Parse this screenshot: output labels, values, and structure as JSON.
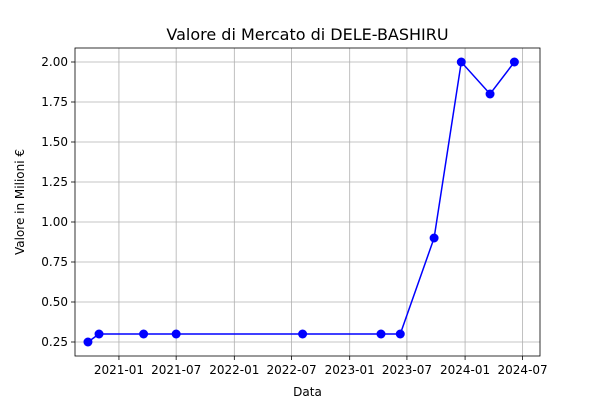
{
  "chart_data": {
    "type": "line",
    "title": "Valore di Mercato di DELE-BASHIRU",
    "xlabel": "Data",
    "ylabel": "Valore in Milioni €",
    "x_tick_labels": [
      "2021-01",
      "2021-07",
      "2022-01",
      "2022-07",
      "2023-01",
      "2023-07",
      "2024-01",
      "2024-07"
    ],
    "x_ticks": [
      "2021-01-01",
      "2021-07-01",
      "2022-01-01",
      "2022-07-01",
      "2023-01-01",
      "2023-07-01",
      "2024-01-01",
      "2024-07-01"
    ],
    "y_tick_labels": [
      "0.25",
      "0.50",
      "0.75",
      "1.00",
      "1.25",
      "1.50",
      "1.75",
      "2.00"
    ],
    "y_ticks": [
      0.25,
      0.5,
      0.75,
      1.0,
      1.25,
      1.5,
      1.75,
      2.0
    ],
    "xlim": [
      "2020-08-15",
      "2024-08-25"
    ],
    "ylim": [
      0.1625,
      2.0875
    ],
    "grid": true,
    "series_color": "#0000ff",
    "series": [
      {
        "x": [
          "2020-09-25",
          "2020-10-30",
          "2021-03-20",
          "2021-07-01",
          "2022-08-05",
          "2023-04-10",
          "2023-06-10",
          "2023-09-25",
          "2023-12-20",
          "2024-03-20",
          "2024-06-05"
        ],
        "values": [
          0.25,
          0.3,
          0.3,
          0.3,
          0.3,
          0.3,
          0.3,
          0.9,
          2.0,
          1.8,
          2.0
        ]
      }
    ]
  }
}
